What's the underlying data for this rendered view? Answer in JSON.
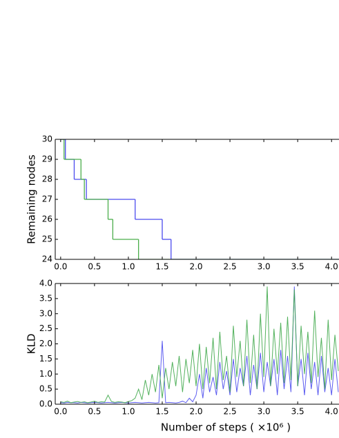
{
  "chart_data": [
    {
      "type": "step",
      "ylabel": "Remaining nodes",
      "xlim": [
        -0.08,
        4.11
      ],
      "ylim": [
        24,
        30
      ],
      "xticks": [
        {
          "value": 0,
          "label": "0.0"
        },
        {
          "value": 0.5,
          "label": "0.5"
        },
        {
          "value": 1,
          "label": "1.0"
        },
        {
          "value": 1.5,
          "label": "1.5"
        },
        {
          "value": 2,
          "label": "2.0"
        },
        {
          "value": 2.5,
          "label": "2.5"
        },
        {
          "value": 3,
          "label": "3.0"
        },
        {
          "value": 3.5,
          "label": "3.5"
        },
        {
          "value": 4,
          "label": "4.0"
        }
      ],
      "yticks": [
        24,
        25,
        26,
        27,
        28,
        29,
        30
      ],
      "series": [
        {
          "color": "#4a4aee",
          "x": [
            0,
            0.07,
            0.2,
            0.38,
            1.1,
            1.5,
            1.63
          ],
          "values": [
            30,
            29,
            28,
            27,
            26,
            25,
            24
          ]
        },
        {
          "color": "#4aad4a",
          "x": [
            0,
            0.05,
            0.3,
            0.35,
            0.7,
            0.77,
            1.15
          ],
          "values": [
            30,
            29,
            28,
            27,
            26,
            25,
            24
          ]
        }
      ]
    },
    {
      "type": "line",
      "ylabel": "KLD",
      "xlabel": "Number of steps ( ×10⁶ )",
      "xlim": [
        -0.08,
        4.11
      ],
      "ylim": [
        0,
        4
      ],
      "xticks": [
        {
          "value": 0,
          "label": "0.0"
        },
        {
          "value": 0.5,
          "label": "0.5"
        },
        {
          "value": 1,
          "label": "1.0"
        },
        {
          "value": 1.5,
          "label": "1.5"
        },
        {
          "value": 2,
          "label": "2.0"
        },
        {
          "value": 2.5,
          "label": "2.5"
        },
        {
          "value": 3,
          "label": "3.0"
        },
        {
          "value": 3.5,
          "label": "3.5"
        },
        {
          "value": 4,
          "label": "4.0"
        }
      ],
      "yticks": [
        {
          "value": 0,
          "label": "0.0"
        },
        {
          "value": 0.5,
          "label": "0.5"
        },
        {
          "value": 1,
          "label": "1.0"
        },
        {
          "value": 1.5,
          "label": "1.5"
        },
        {
          "value": 2,
          "label": "2.0"
        },
        {
          "value": 2.5,
          "label": "2.5"
        },
        {
          "value": 3,
          "label": "3.0"
        },
        {
          "value": 3.5,
          "label": "3.5"
        },
        {
          "value": 4,
          "label": "4.0"
        }
      ],
      "x": [
        0,
        0.05,
        0.1,
        0.15,
        0.2,
        0.25,
        0.3,
        0.35,
        0.4,
        0.45,
        0.5,
        0.55,
        0.6,
        0.65,
        0.7,
        0.75,
        0.8,
        0.85,
        0.9,
        0.95,
        1,
        1.05,
        1.1,
        1.15,
        1.2,
        1.25,
        1.3,
        1.35,
        1.4,
        1.45,
        1.5,
        1.55,
        1.6,
        1.65,
        1.7,
        1.75,
        1.8,
        1.85,
        1.9,
        1.95,
        2,
        2.05,
        2.1,
        2.15,
        2.2,
        2.25,
        2.3,
        2.35,
        2.4,
        2.45,
        2.5,
        2.55,
        2.6,
        2.65,
        2.7,
        2.75,
        2.8,
        2.85,
        2.9,
        2.95,
        3,
        3.05,
        3.1,
        3.15,
        3.2,
        3.25,
        3.3,
        3.35,
        3.4,
        3.45,
        3.5,
        3.55,
        3.6,
        3.65,
        3.7,
        3.75,
        3.8,
        3.85,
        3.9,
        3.95,
        4,
        4.05,
        4.1
      ],
      "series": [
        {
          "color": "#4a4aee",
          "values": [
            0.05,
            0.04,
            0.06,
            0.05,
            0.05,
            0.04,
            0.06,
            0.05,
            0.04,
            0.05,
            0.06,
            0.05,
            0.04,
            0.05,
            0.06,
            0.05,
            0.04,
            0.05,
            0.06,
            0.05,
            0.04,
            0.05,
            0.06,
            0.05,
            0.04,
            0.05,
            0.06,
            0.05,
            0.04,
            0.05,
            2.1,
            0.05,
            0.06,
            0.05,
            0.04,
            0.06,
            0.1,
            0.05,
            0.2,
            0.08,
            0.3,
            1.0,
            0.2,
            1.2,
            0.4,
            0.9,
            0.3,
            1.4,
            0.5,
            1.1,
            0.3,
            1.5,
            0.4,
            1.2,
            0.6,
            1.6,
            0.3,
            1.3,
            0.5,
            1.7,
            0.4,
            1.4,
            0.6,
            1.5,
            0.3,
            1.8,
            0.5,
            1.6,
            0.4,
            3.9,
            0.6,
            1.5,
            0.3,
            1.7,
            0.5,
            1.4,
            0.3,
            1.6,
            0.4,
            1.2,
            0.3,
            1.5,
            0.4
          ]
        },
        {
          "color": "#3fa84a",
          "values": [
            0.08,
            0.06,
            0.1,
            0.05,
            0.07,
            0.09,
            0.06,
            0.08,
            0.05,
            0.07,
            0.1,
            0.06,
            0.08,
            0.07,
            0.3,
            0.09,
            0.06,
            0.08,
            0.07,
            0.05,
            0.09,
            0.12,
            0.2,
            0.5,
            0.15,
            0.8,
            0.3,
            1.0,
            0.4,
            1.3,
            0.2,
            1.2,
            0.5,
            1.4,
            0.6,
            1.6,
            0.4,
            1.5,
            0.7,
            1.8,
            0.6,
            2.0,
            0.5,
            1.9,
            0.7,
            2.2,
            0.5,
            2.4,
            0.8,
            1.6,
            0.4,
            2.6,
            0.9,
            2.1,
            0.6,
            2.8,
            0.7,
            2.3,
            0.5,
            3.0,
            0.9,
            3.9,
            0.6,
            2.5,
            1.0,
            2.7,
            0.7,
            2.9,
            0.8,
            3.8,
            0.6,
            2.6,
            1.0,
            2.4,
            0.7,
            3.1,
            0.9,
            2.2,
            0.5,
            2.8,
            0.8,
            2.3,
            1.1
          ]
        }
      ]
    }
  ]
}
